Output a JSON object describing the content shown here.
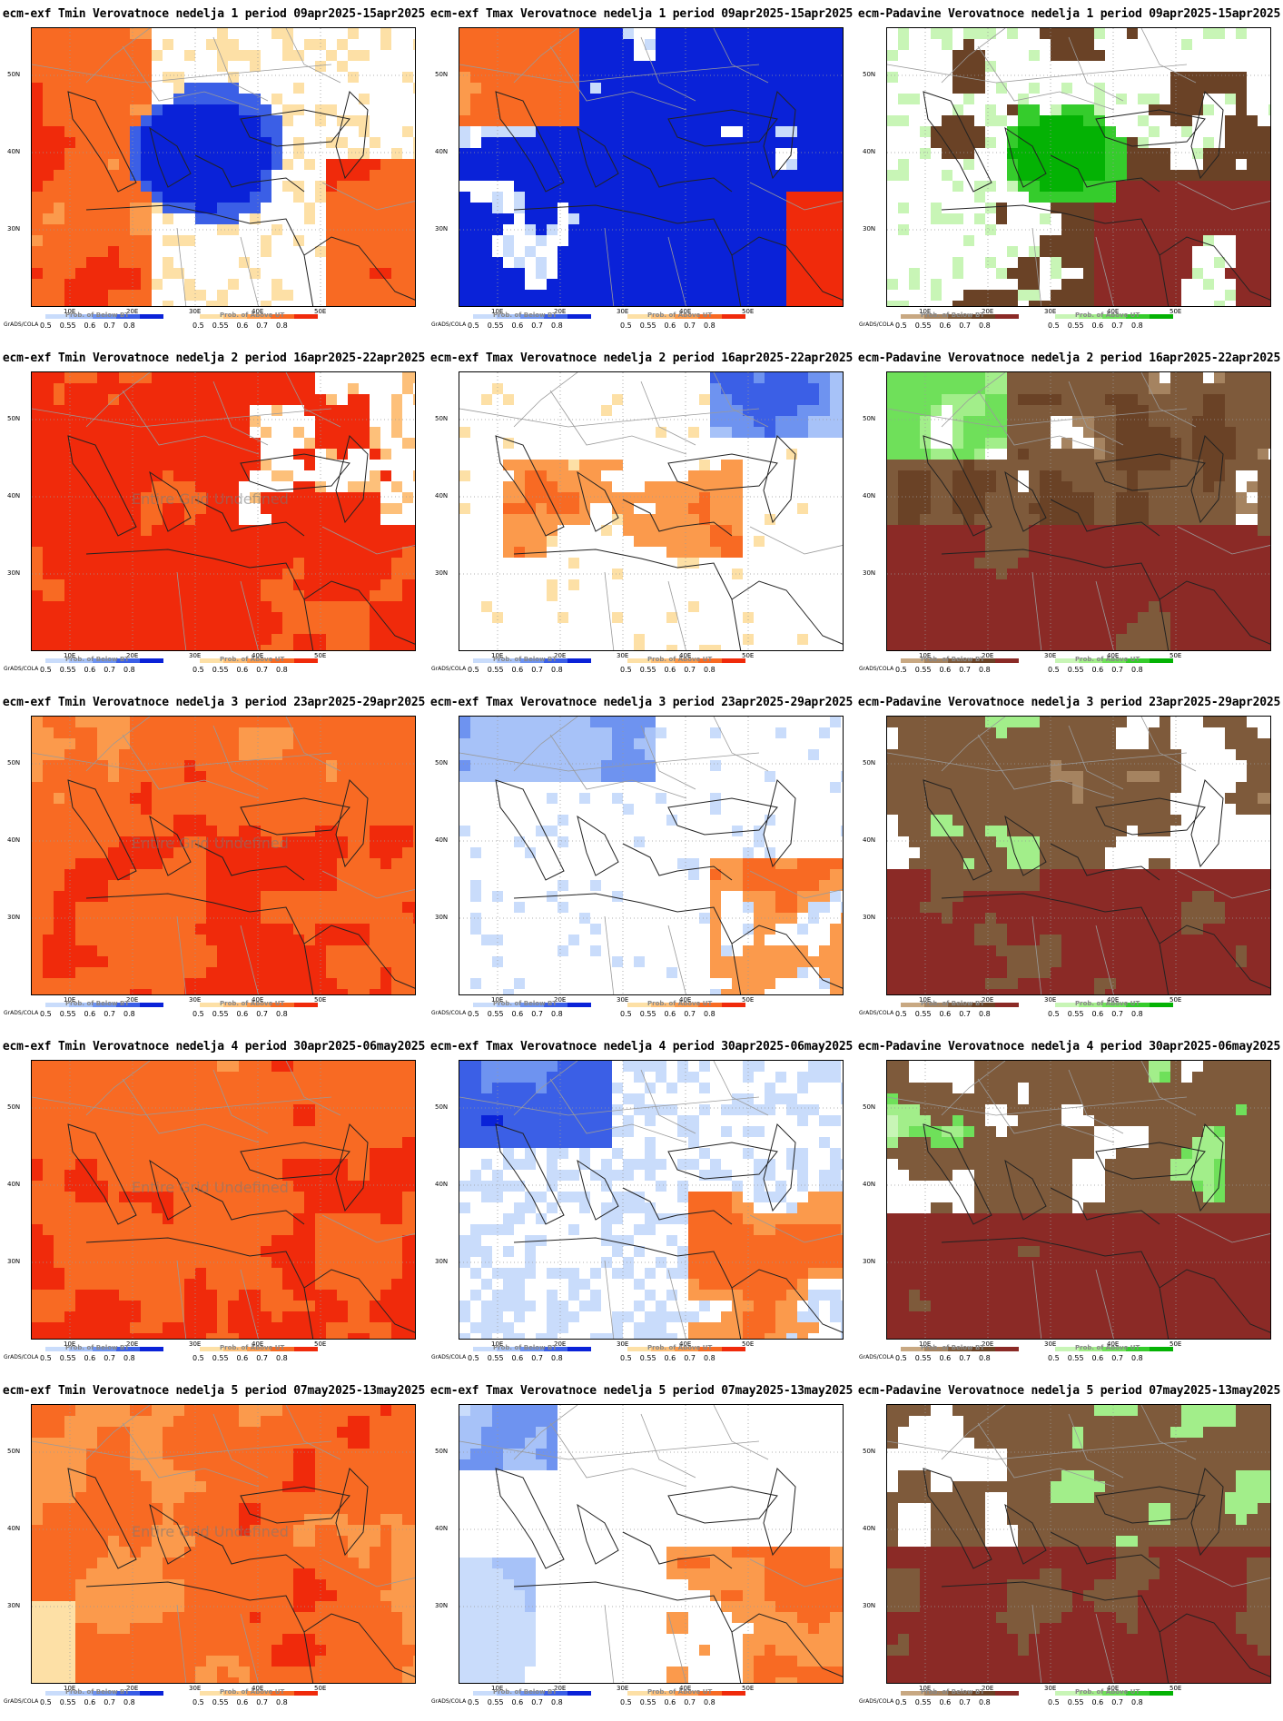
{
  "lat_labels": [
    "50N",
    "40N",
    "30N"
  ],
  "lon_labels": [
    "10E",
    "20E",
    "30E",
    "40E",
    "50E"
  ],
  "watermark_text": "Entire Grid Undefined",
  "grads_label": "GrADS/COLA",
  "legend_ticks": [
    "0.5",
    "0.55",
    "0.6",
    "0.7",
    "0.8"
  ],
  "legend_captions": {
    "below": "Prob. of Below BT",
    "above": "Prob. of Above UT"
  },
  "colors": {
    "cold": [
      "#c9dcfb",
      "#a7c2f8",
      "#6e93f0",
      "#3b5fe6",
      "#0a22d8"
    ],
    "warm": [
      "#fde0a6",
      "#fdc07a",
      "#fb9a4c",
      "#f86a23",
      "#f02a0b"
    ],
    "dry": [
      "#c8a882",
      "#a58360",
      "#7e5a3b",
      "#6a4226",
      "#8b2a26"
    ],
    "wet": [
      "#c8f5b6",
      "#a2ee8a",
      "#6fe05a",
      "#35cc2c",
      "#04b204"
    ]
  },
  "panels": [
    {
      "title": "ecm-exf Tmin Verovatnoce nedelja 1 period 09apr2025-15apr2025",
      "variable": "Tmin",
      "week": 1,
      "legend_left": "cold",
      "legend_right": "warm",
      "pattern": "tmin1",
      "watermark": false
    },
    {
      "title": "ecm-exf Tmax Verovatnoce nedelja 1 period 09apr2025-15apr2025",
      "variable": "Tmax",
      "week": 1,
      "legend_left": "cold",
      "legend_right": "warm",
      "pattern": "tmax1",
      "watermark": false
    },
    {
      "title": "ecm-Padavine Verovatnoce nedelja 1 period 09apr2025-15apr2025",
      "variable": "Padavine",
      "week": 1,
      "legend_left": "dry",
      "legend_right": "wet",
      "pattern": "pad1",
      "watermark": false
    },
    {
      "title": "ecm-exf Tmin Verovatnoce nedelja 2 period 16apr2025-22apr2025",
      "variable": "Tmin",
      "week": 2,
      "legend_left": "cold",
      "legend_right": "warm",
      "pattern": "tmin2",
      "watermark": true
    },
    {
      "title": "ecm-exf Tmax Verovatnoce nedelja 2 period 16apr2025-22apr2025",
      "variable": "Tmax",
      "week": 2,
      "legend_left": "cold",
      "legend_right": "warm",
      "pattern": "tmax2",
      "watermark": false
    },
    {
      "title": "ecm-Padavine Verovatnoce nedelja 2 period 16apr2025-22apr2025",
      "variable": "Padavine",
      "week": 2,
      "legend_left": "dry",
      "legend_right": "wet",
      "pattern": "pad2",
      "watermark": false
    },
    {
      "title": "ecm-exf Tmin Verovatnoce nedelja 3 period 23apr2025-29apr2025",
      "variable": "Tmin",
      "week": 3,
      "legend_left": "cold",
      "legend_right": "warm",
      "pattern": "tmin3",
      "watermark": true
    },
    {
      "title": "ecm-exf Tmax Verovatnoce nedelja 3 period 23apr2025-29apr2025",
      "variable": "Tmax",
      "week": 3,
      "legend_left": "cold",
      "legend_right": "warm",
      "pattern": "tmax3",
      "watermark": false
    },
    {
      "title": "ecm-Padavine Verovatnoce nedelja 3 period 23apr2025-29apr2025",
      "variable": "Padavine",
      "week": 3,
      "legend_left": "dry",
      "legend_right": "wet",
      "pattern": "pad3",
      "watermark": false
    },
    {
      "title": "ecm-exf Tmin Verovatnoce nedelja 4 period 30apr2025-06may2025",
      "variable": "Tmin",
      "week": 4,
      "legend_left": "cold",
      "legend_right": "warm",
      "pattern": "tmin4",
      "watermark": true
    },
    {
      "title": "ecm-exf Tmax Verovatnoce nedelja 4 period 30apr2025-06may2025",
      "variable": "Tmax",
      "week": 4,
      "legend_left": "cold",
      "legend_right": "warm",
      "pattern": "tmax4",
      "watermark": false
    },
    {
      "title": "ecm-Padavine Verovatnoce nedelja 4 period 30apr2025-06may2025",
      "variable": "Padavine",
      "week": 4,
      "legend_left": "dry",
      "legend_right": "wet",
      "pattern": "pad4",
      "watermark": false
    },
    {
      "title": "ecm-exf Tmin Verovatnoce nedelja 5 period 07may2025-13may2025",
      "variable": "Tmin",
      "week": 5,
      "legend_left": "cold",
      "legend_right": "warm",
      "pattern": "tmin5",
      "watermark": true
    },
    {
      "title": "ecm-exf Tmax Verovatnoce nedelja 5 period 07may2025-13may2025",
      "variable": "Tmax",
      "week": 5,
      "legend_left": "cold",
      "legend_right": "warm",
      "pattern": "tmax5",
      "watermark": false
    },
    {
      "title": "ecm-Padavine Verovatnoce nedelja 5 period 07may2025-13may2025",
      "variable": "Padavine",
      "week": 5,
      "legend_left": "dry",
      "legend_right": "wet",
      "pattern": "pad5",
      "watermark": false
    }
  ]
}
